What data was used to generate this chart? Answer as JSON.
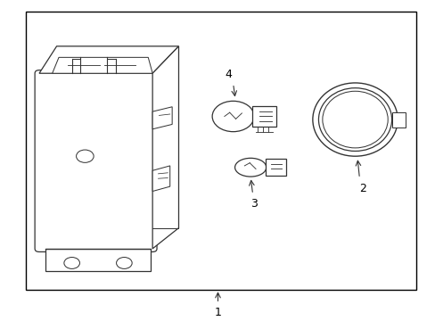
{
  "bg_color": "#ffffff",
  "line_color": "#333333",
  "fig_width": 4.89,
  "fig_height": 3.6,
  "dpi": 100,
  "border": [
    0.06,
    0.09,
    0.955,
    0.965
  ]
}
